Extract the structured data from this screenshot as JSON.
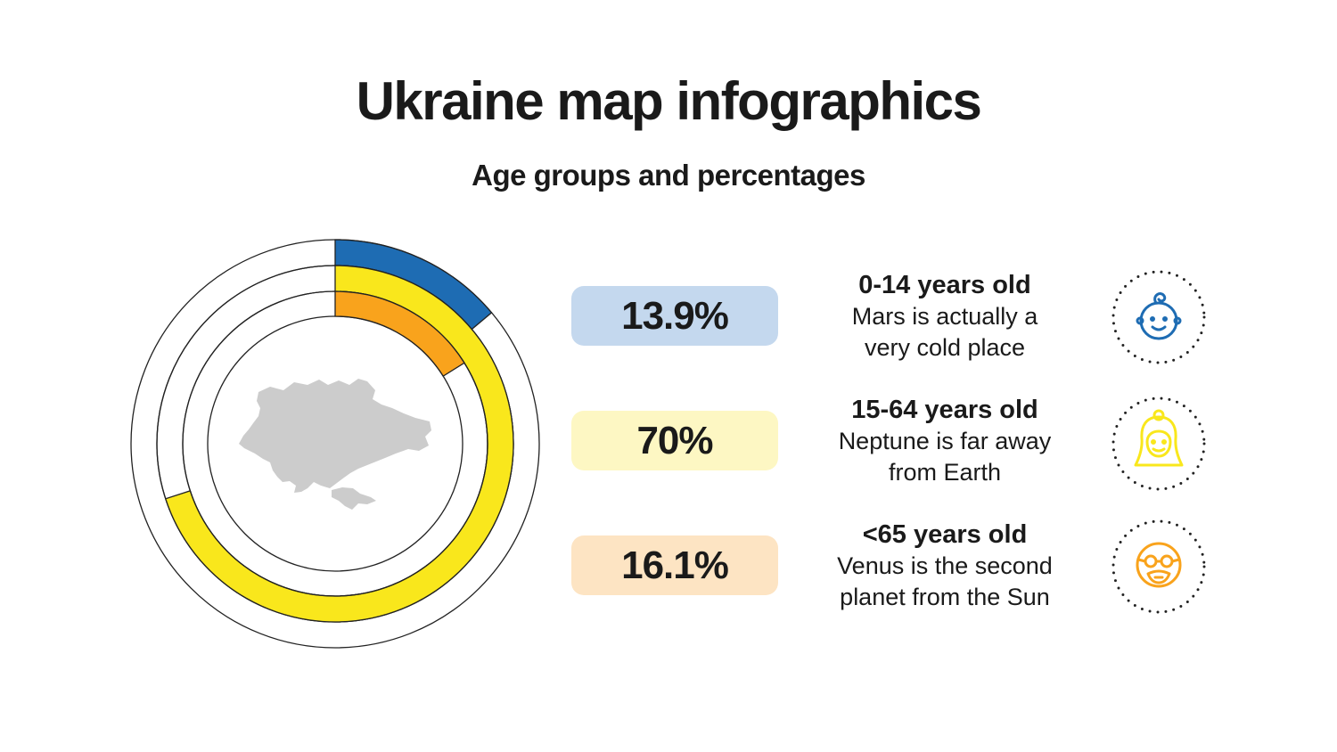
{
  "title": "Ukraine map infographics",
  "subtitle": "Age groups and percentages",
  "colors": {
    "blue": "#1e6cb3",
    "yellow": "#f9e71c",
    "orange": "#f9a31c",
    "map_gray": "#cccccc",
    "ring_stroke": "#222222"
  },
  "chart_data": {
    "type": "donut",
    "title": "",
    "rings": [
      {
        "name": "0-14 years old",
        "value": 13.9,
        "label": "13.9%",
        "color": "#1e6cb3"
      },
      {
        "name": "15-64 years old",
        "value": 70,
        "label": "70%",
        "color": "#f9e71c"
      },
      {
        "name": "<65 years old",
        "value": 16.1,
        "label": "16.1%",
        "color": "#f9a31c"
      }
    ]
  },
  "groups": [
    {
      "percent": "13.9%",
      "heading": "0-14 years old",
      "text": "Mars is actually a\nvery cold place",
      "pill_color": "#c4d8ee",
      "icon": "baby-face-icon",
      "icon_color": "#1e6cb3"
    },
    {
      "percent": "70%",
      "heading": "15-64 years old",
      "text": "Neptune is far away\nfrom Earth",
      "pill_color": "#fdf7c3",
      "icon": "woman-face-icon",
      "icon_color": "#f9e71c"
    },
    {
      "percent": "16.1%",
      "heading": "<65 years old",
      "text": "Venus is the second\nplanet from the Sun",
      "pill_color": "#fde4c3",
      "icon": "elderly-face-icon",
      "icon_color": "#f9a31c"
    }
  ]
}
